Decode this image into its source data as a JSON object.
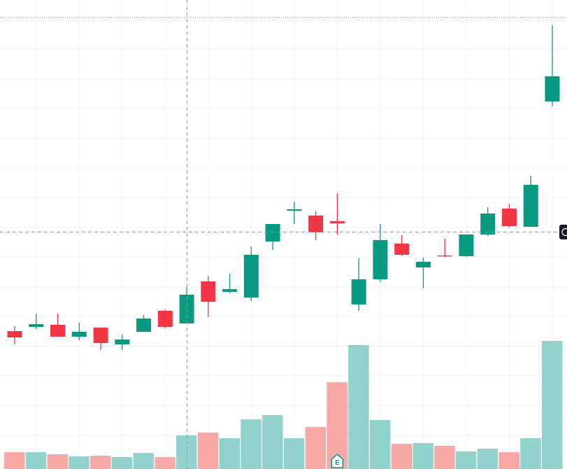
{
  "chart_data": {
    "type": "candlestick",
    "open": [
      197,
      203,
      206,
      189,
      202,
      178,
      196,
      226,
      208,
      268,
      253,
      245,
      325,
      369,
      362,
      354,
      235,
      271,
      322,
      288,
      305,
      304,
      335,
      372,
      346,
      525
    ],
    "high": [
      204,
      222,
      222,
      209,
      202,
      192,
      220,
      228,
      260,
      276,
      279,
      318,
      350,
      382,
      368,
      394,
      301,
      350,
      334,
      302,
      329,
      335,
      374,
      379,
      419,
      634
    ],
    "low": [
      178,
      200,
      189,
      184,
      170,
      170,
      196,
      201,
      208,
      217,
      251,
      240,
      313,
      350,
      327,
      335,
      226,
      267,
      304,
      258,
      303,
      303,
      333,
      345,
      346,
      518
    ],
    "close": [
      188,
      207,
      189,
      196,
      180,
      185,
      215,
      203,
      249,
      239,
      257,
      306,
      350,
      371,
      338,
      351,
      271,
      327,
      306,
      296,
      304,
      335,
      365,
      347,
      406,
      561
    ],
    "volume": [
      24,
      24,
      21,
      18,
      19,
      17,
      23,
      17,
      48,
      52,
      44,
      71,
      77,
      44,
      60,
      124,
      177,
      70,
      36,
      37,
      33,
      25,
      29,
      24,
      44,
      183
    ],
    "ylim": [
      0,
      670
    ],
    "volume_lim": [
      0,
      670
    ],
    "up_color": "#089981",
    "down_color": "#f23645",
    "volume_up_color": "#92d2cc",
    "volume_down_color": "#f7a9a7",
    "grid": true,
    "marker": {
      "index": 15,
      "label": "E"
    }
  }
}
